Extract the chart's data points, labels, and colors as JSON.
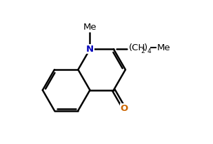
{
  "bg_color": "#ffffff",
  "line_color": "#000000",
  "N_color": "#0000bb",
  "O_color": "#cc6600",
  "line_width": 1.8,
  "font_size_label": 9.5,
  "font_size_sub": 6.5,
  "figsize": [
    3.09,
    2.09
  ],
  "dpi": 100,
  "xlim": [
    -3.8,
    5.2
  ],
  "ylim": [
    -3.2,
    2.4
  ]
}
